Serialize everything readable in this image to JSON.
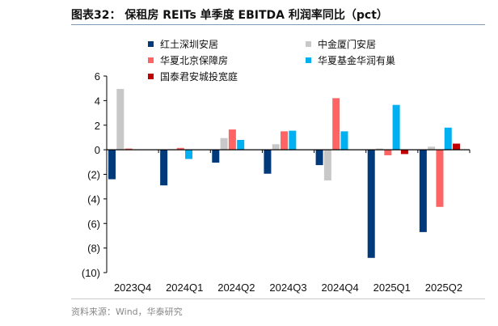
{
  "title": "图表32：  保租房 REITs 单季度 EBITDA 利润率同比（pct）",
  "source": "资料来源：Wind，华泰研究",
  "chart_data": {
    "type": "bar",
    "title": "图表32：  保租房 REITs 单季度 EBITDA 利润率同比（pct）",
    "categories": [
      "2023Q4",
      "2024Q1",
      "2024Q2",
      "2024Q3",
      "2024Q4",
      "2025Q1",
      "2025Q2"
    ],
    "series": [
      {
        "name": "红土深圳安居",
        "color": "#003a7a",
        "values": [
          -2.4,
          -2.9,
          -1.05,
          -1.95,
          -1.25,
          -8.8,
          -6.7
        ]
      },
      {
        "name": "中金厦门安居",
        "color": "#c8c8c8",
        "values": [
          4.95,
          0.05,
          0.95,
          0.45,
          -2.5,
          0.1,
          0.25
        ]
      },
      {
        "name": "华夏北京保障房",
        "color": "#ff6464",
        "values": [
          0.1,
          0.15,
          1.65,
          1.5,
          4.2,
          -0.45,
          -4.65
        ]
      },
      {
        "name": "华夏基金华润有巢",
        "color": "#00b0f0",
        "values": [
          null,
          -0.75,
          0.8,
          1.55,
          1.5,
          3.65,
          1.8
        ]
      },
      {
        "name": "国泰君安城投宽庭",
        "color": "#c00000",
        "values": [
          null,
          null,
          null,
          null,
          null,
          -0.35,
          0.5
        ]
      }
    ],
    "ylim": [
      -10,
      6
    ],
    "yticks": [
      6,
      4,
      2,
      0,
      -2,
      -4,
      -6,
      -8,
      -10
    ],
    "ytick_labels": [
      "6",
      "4",
      "2",
      "0",
      "(2)",
      "(4)",
      "(6)",
      "(8)",
      "(10)"
    ],
    "legend_placement": "top",
    "grid": false
  }
}
